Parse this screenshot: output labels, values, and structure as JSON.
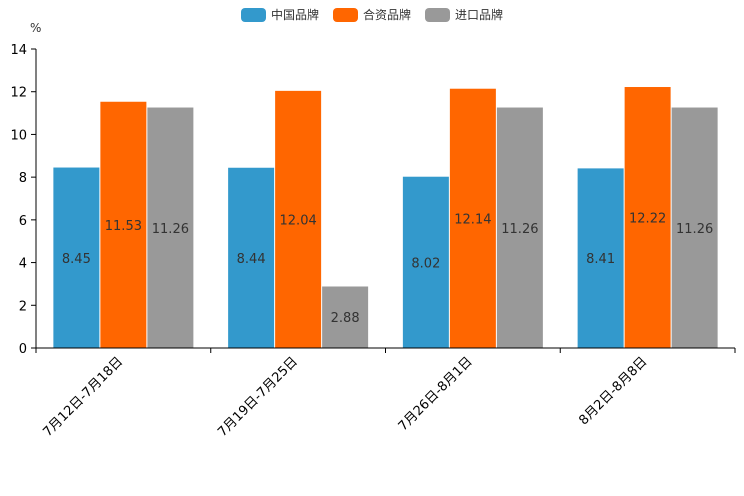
{
  "chart_data": {
    "type": "bar",
    "unit_label": "%",
    "categories": [
      "7月12日-7月18日",
      "7月19日-7月25日",
      "7月26日-8月1日",
      "8月2日-8月8日"
    ],
    "series": [
      {
        "name": "中国品牌",
        "color": "#3399cc",
        "values": [
          8.45,
          8.44,
          8.02,
          8.41
        ]
      },
      {
        "name": "合资品牌",
        "color": "#ff6600",
        "values": [
          11.53,
          12.04,
          12.14,
          12.22
        ]
      },
      {
        "name": "进口品牌",
        "color": "#999999",
        "values": [
          11.26,
          2.88,
          11.26,
          11.26
        ]
      }
    ],
    "ylim": [
      0,
      14
    ],
    "yticks": [
      0,
      2,
      4,
      6,
      8,
      10,
      12,
      14
    ],
    "grid": false,
    "legend_position": "top-center"
  }
}
